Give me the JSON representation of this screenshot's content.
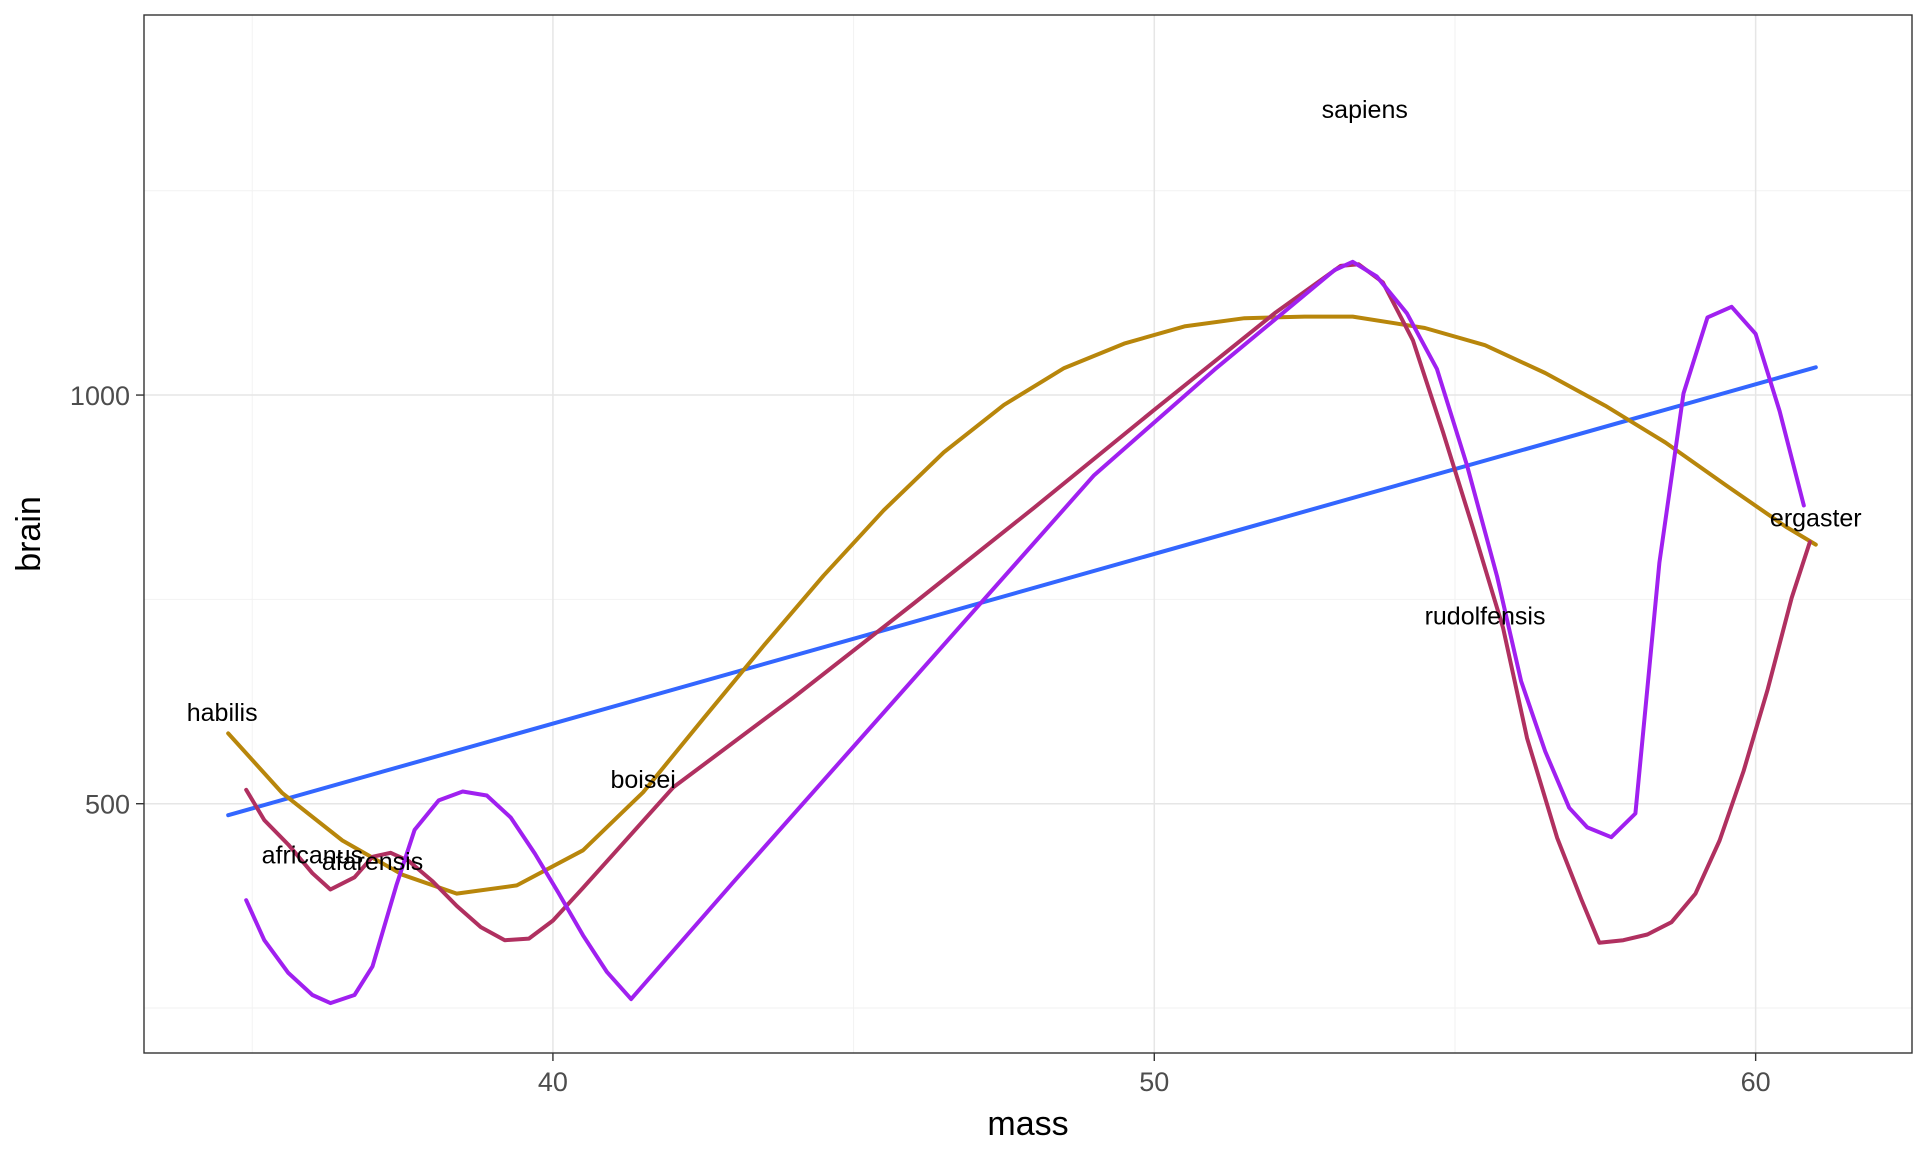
{
  "chart_data": {
    "type": "line",
    "xlabel": "mass",
    "ylabel": "brain",
    "xlim": [
      33.2,
      62.6
    ],
    "ylim": [
      195,
      1465
    ],
    "x_ticks": [
      40,
      50,
      60
    ],
    "y_ticks": [
      500,
      1000
    ],
    "grid": true,
    "points": [
      {
        "label": "habilis",
        "x": 34.5,
        "y": 612
      },
      {
        "label": "africanus",
        "x": 36.0,
        "y": 438
      },
      {
        "label": "afarensis",
        "x": 37.0,
        "y": 430
      },
      {
        "label": "boisei",
        "x": 41.5,
        "y": 530
      },
      {
        "label": "sapiens",
        "x": 53.5,
        "y": 1350
      },
      {
        "label": "rudolfensis",
        "x": 55.5,
        "y": 730
      },
      {
        "label": "ergaster",
        "x": 61.0,
        "y": 850
      }
    ],
    "series": [
      {
        "color": "#3366ff",
        "x": [
          34.6,
          61.0
        ],
        "y": [
          486,
          1034
        ]
      },
      {
        "color": "#b8860b",
        "x": [
          34.6,
          35.5,
          36.5,
          37.5,
          38.4,
          39.4,
          40.5,
          41.5,
          42.5,
          43.5,
          44.5,
          45.5,
          46.5,
          47.5,
          48.5,
          49.5,
          50.5,
          51.5,
          52.5,
          53.3,
          54.5,
          55.5,
          56.5,
          57.5,
          58.5,
          59.5,
          60.5,
          61.0
        ],
        "y": [
          586,
          513,
          455,
          413,
          390,
          400,
          443,
          514,
          604,
          693,
          779,
          859,
          930,
          988,
          1033,
          1063,
          1084,
          1094,
          1096,
          1096,
          1082,
          1061,
          1027,
          987,
          942,
          890,
          839,
          817
        ]
      },
      {
        "color": "#b03060",
        "x": [
          34.9,
          35.2,
          35.6,
          36.0,
          36.3,
          36.7,
          37.0,
          37.3,
          37.6,
          38.0,
          38.4,
          38.8,
          39.2,
          39.6,
          40.0,
          40.5,
          41.0,
          42.0,
          44.0,
          46.0,
          48.0,
          50.0,
          52.0,
          53.1,
          53.4,
          53.8,
          54.3,
          54.8,
          55.3,
          55.8,
          56.2,
          56.7,
          57.1,
          57.4,
          57.8,
          58.2,
          58.6,
          59.0,
          59.4,
          59.8,
          60.2,
          60.6,
          60.9
        ],
        "y": [
          517,
          480,
          450,
          415,
          395,
          410,
          435,
          440,
          430,
          405,
          375,
          349,
          333,
          335,
          357,
          397,
          438,
          520,
          630,
          745,
          862,
          982,
          1100,
          1158,
          1160,
          1138,
          1067,
          955,
          837,
          715,
          580,
          458,
          383,
          330,
          333,
          340,
          355,
          390,
          455,
          540,
          640,
          752,
          820
        ]
      },
      {
        "color": "#a020f0",
        "x": [
          34.9,
          35.2,
          35.6,
          36.0,
          36.3,
          36.7,
          37.0,
          37.4,
          37.7,
          38.1,
          38.5,
          38.9,
          39.3,
          39.7,
          40.1,
          40.5,
          40.9,
          41.3,
          43.0,
          45.0,
          47.0,
          49.0,
          51.0,
          53.0,
          53.3,
          53.7,
          54.2,
          54.7,
          55.2,
          55.7,
          56.1,
          56.5,
          56.9,
          57.2,
          57.6,
          58.0,
          58.4,
          58.8,
          59.2,
          59.6,
          60.0,
          60.4,
          60.8
        ],
        "y": [
          382,
          333,
          293,
          266,
          256,
          266,
          301,
          401,
          468,
          504,
          515,
          510,
          483,
          439,
          390,
          339,
          294,
          261,
          404,
          570,
          736,
          902,
          1031,
          1153,
          1163,
          1145,
          1100,
          1032,
          914,
          778,
          650,
          564,
          495,
          471,
          459,
          488,
          795,
          1002,
          1095,
          1108,
          1075,
          980,
          865
        ]
      }
    ]
  }
}
